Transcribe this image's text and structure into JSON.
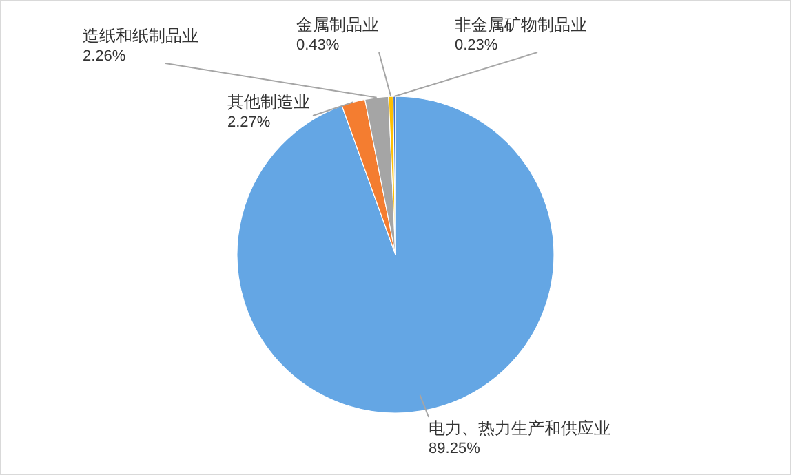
{
  "chart_data": {
    "type": "pie",
    "categories": [
      "电力、热力生产和供应业",
      "其他制造业",
      "造纸和纸制品业",
      "金属制品业",
      "非金属矿物制品业"
    ],
    "values": [
      89.25,
      2.27,
      2.26,
      0.43,
      0.23
    ],
    "colors": [
      "#64a6e4",
      "#f47d30",
      "#a5a5a5",
      "#ffc000",
      "#4472c4"
    ],
    "value_labels": [
      "89.25%",
      "2.27%",
      "2.26%",
      "0.43%",
      "0.23%"
    ]
  }
}
